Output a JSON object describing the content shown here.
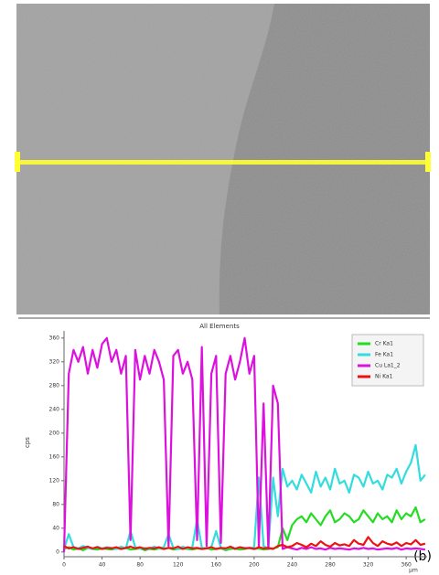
{
  "chart_data": {
    "type": "line",
    "title": "All Elements",
    "y_label": "cps",
    "x_label": "µm",
    "annotation": "(b)",
    "x": [
      0,
      5,
      10,
      15,
      20,
      25,
      30,
      35,
      40,
      45,
      50,
      55,
      60,
      65,
      70,
      75,
      80,
      85,
      90,
      95,
      100,
      105,
      110,
      115,
      120,
      125,
      130,
      135,
      140,
      145,
      150,
      155,
      160,
      165,
      170,
      175,
      180,
      185,
      190,
      195,
      200,
      205,
      210,
      215,
      220,
      225,
      230,
      235,
      240,
      245,
      250,
      255,
      260,
      265,
      270,
      275,
      280,
      285,
      290,
      295,
      300,
      305,
      310,
      315,
      320,
      325,
      330,
      335,
      340,
      345,
      350,
      355,
      360,
      365,
      370,
      375,
      380
    ],
    "xlim": [
      0,
      382
    ],
    "xticks": [
      0,
      40,
      80,
      120,
      160,
      200,
      240,
      280,
      320,
      360
    ],
    "ylim": [
      -8,
      372
    ],
    "yticks": [
      0,
      40,
      80,
      120,
      160,
      200,
      240,
      280,
      320,
      360
    ],
    "legend": "upper right",
    "series": [
      {
        "name": "Cr Ka1",
        "color": "#22dd22",
        "values": [
          5,
          8,
          4,
          6,
          3,
          7,
          5,
          4,
          6,
          5,
          4,
          6,
          5,
          7,
          4,
          5,
          6,
          3,
          5,
          4,
          6,
          5,
          7,
          4,
          5,
          6,
          5,
          4,
          6,
          5,
          7,
          4,
          5,
          6,
          3,
          5,
          6,
          4,
          5,
          7,
          5,
          6,
          4,
          5,
          6,
          8,
          40,
          20,
          45,
          55,
          60,
          50,
          65,
          55,
          45,
          60,
          70,
          50,
          55,
          65,
          60,
          50,
          55,
          70,
          60,
          50,
          65,
          55,
          60,
          50,
          70,
          55,
          65,
          60,
          75,
          50,
          55
        ]
      },
      {
        "name": "Fe Ka1",
        "color": "#33dddd",
        "values": [
          5,
          30,
          8,
          6,
          10,
          7,
          5,
          9,
          6,
          8,
          7,
          5,
          9,
          6,
          35,
          8,
          6,
          7,
          5,
          9,
          6,
          8,
          30,
          7,
          5,
          9,
          6,
          8,
          55,
          7,
          6,
          8,
          35,
          7,
          5,
          9,
          6,
          8,
          7,
          6,
          8,
          125,
          10,
          6,
          125,
          60,
          140,
          110,
          120,
          105,
          130,
          115,
          100,
          135,
          110,
          125,
          105,
          140,
          115,
          120,
          100,
          130,
          125,
          110,
          135,
          115,
          120,
          105,
          130,
          125,
          140,
          115,
          135,
          150,
          180,
          120,
          130
        ]
      },
      {
        "name": "Cu La1_2",
        "color": "#dd11dd",
        "values": [
          0,
          300,
          340,
          320,
          345,
          300,
          340,
          310,
          350,
          360,
          320,
          340,
          300,
          330,
          20,
          340,
          290,
          330,
          300,
          340,
          320,
          290,
          10,
          330,
          340,
          300,
          320,
          290,
          20,
          345,
          10,
          300,
          330,
          15,
          300,
          330,
          290,
          320,
          360,
          300,
          330,
          10,
          250,
          5,
          280,
          250,
          5,
          8,
          6,
          4,
          7,
          5,
          8,
          5,
          6,
          4,
          7,
          5,
          6,
          5,
          4,
          6,
          5,
          7,
          5,
          6,
          4,
          5,
          6,
          5,
          7,
          4,
          6,
          5,
          6,
          5,
          4
        ]
      },
      {
        "name": "Ni Ka1",
        "color": "#ee1111",
        "values": [
          10,
          6,
          8,
          5,
          7,
          9,
          6,
          8,
          5,
          7,
          6,
          8,
          5,
          7,
          9,
          6,
          8,
          5,
          7,
          6,
          8,
          5,
          7,
          6,
          9,
          5,
          8,
          6,
          7,
          5,
          6,
          8,
          5,
          7,
          6,
          9,
          5,
          8,
          6,
          7,
          5,
          8,
          6,
          7,
          5,
          10,
          12,
          8,
          10,
          15,
          12,
          8,
          14,
          10,
          18,
          12,
          9,
          15,
          11,
          13,
          10,
          20,
          14,
          12,
          25,
          15,
          10,
          18,
          14,
          12,
          16,
          10,
          15,
          13,
          20,
          12,
          14
        ]
      }
    ]
  }
}
